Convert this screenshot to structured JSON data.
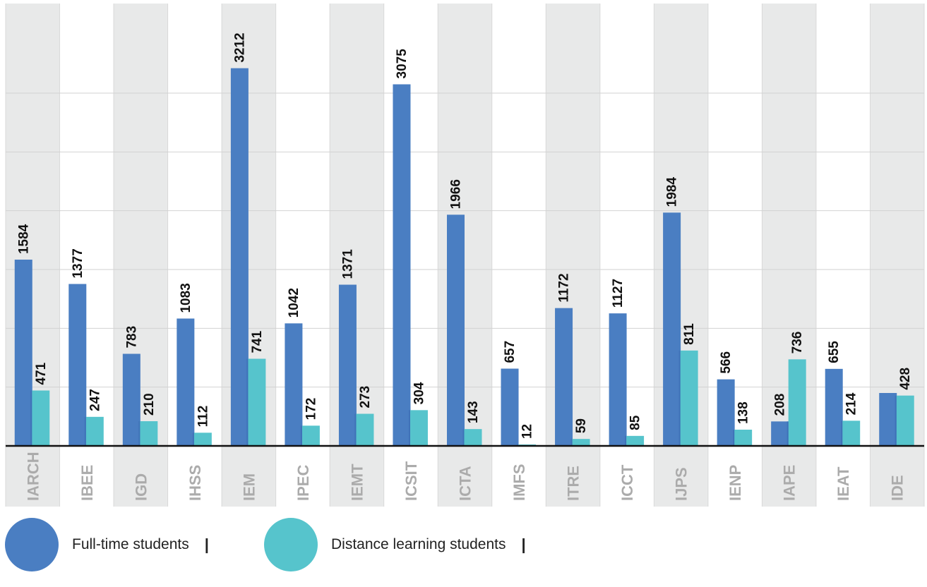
{
  "chart_data": {
    "type": "bar",
    "title": "",
    "xlabel": "",
    "ylabel": "",
    "categories": [
      "IARCH",
      "IBEE",
      "IGD",
      "IHSS",
      "IEM",
      "IPEC",
      "IEMT",
      "ICSIT",
      "ICTA",
      "IMFS",
      "ITRE",
      "ICCT",
      "IJPS",
      "IENP",
      "IAPE",
      "IEAT",
      "IDE"
    ],
    "series": [
      {
        "name": "Full-time students",
        "color": "#4a7ec2",
        "values": [
          1584,
          1377,
          783,
          1083,
          3212,
          1042,
          1371,
          3075,
          1966,
          657,
          1172,
          1127,
          1984,
          566,
          208,
          655,
          null
        ]
      },
      {
        "name": "Distance learning students",
        "color": "#56c4cc",
        "values": [
          471,
          247,
          210,
          112,
          741,
          172,
          273,
          304,
          143,
          12,
          59,
          85,
          811,
          138,
          736,
          214,
          428
        ]
      }
    ],
    "ylim": [
      0,
      3600
    ],
    "grid": true,
    "legend_position": "bottom-left"
  },
  "legend": {
    "items": [
      {
        "label": "Full-time students",
        "separator": "|"
      },
      {
        "label": "Distance learning students",
        "separator": "|"
      }
    ]
  }
}
